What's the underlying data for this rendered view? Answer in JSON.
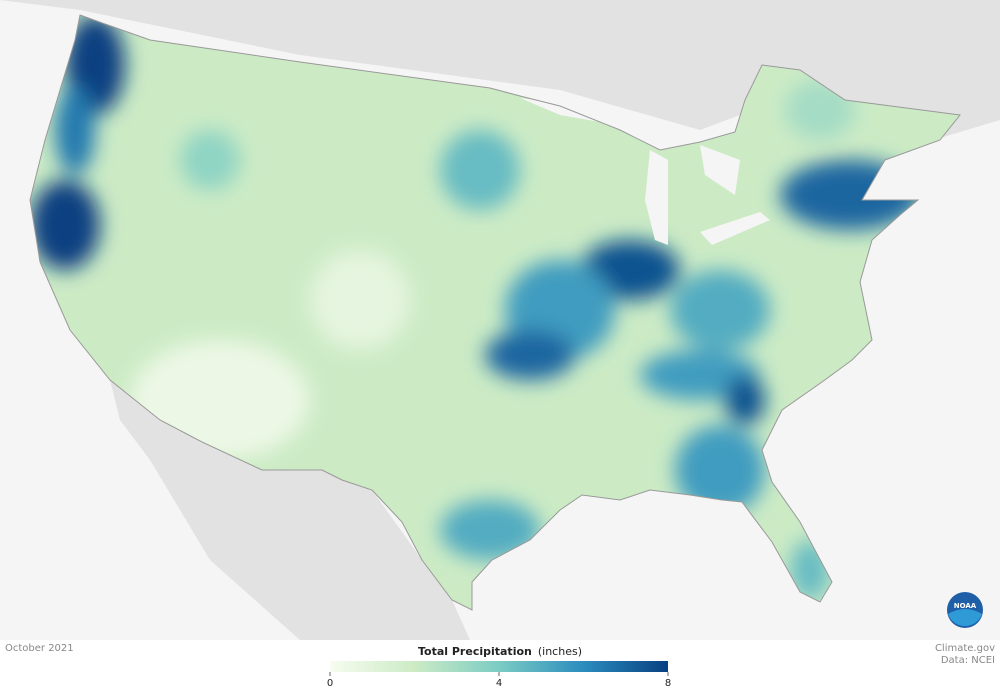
{
  "map": {
    "values": [
      2,
      8,
      6.5,
      8,
      7,
      7.5,
      5.5,
      7,
      5,
      5.5,
      7.5,
      5.5,
      5,
      4.5,
      3.5,
      4.5,
      0.5,
      0.8,
      3
    ]
  },
  "footer": {
    "date": "October 2021",
    "credit": "Climate.gov",
    "source": "Data: NCEI"
  },
  "legend": {
    "title": "Total Precipitation",
    "unit": "(inches)",
    "range": [
      0,
      8
    ],
    "ticks": [
      0,
      4,
      8
    ],
    "colors": [
      "#f7fcf0",
      "#ccebc5",
      "#7bccc4",
      "#2b8cbe",
      "#084081"
    ]
  },
  "logo": "NOAA"
}
